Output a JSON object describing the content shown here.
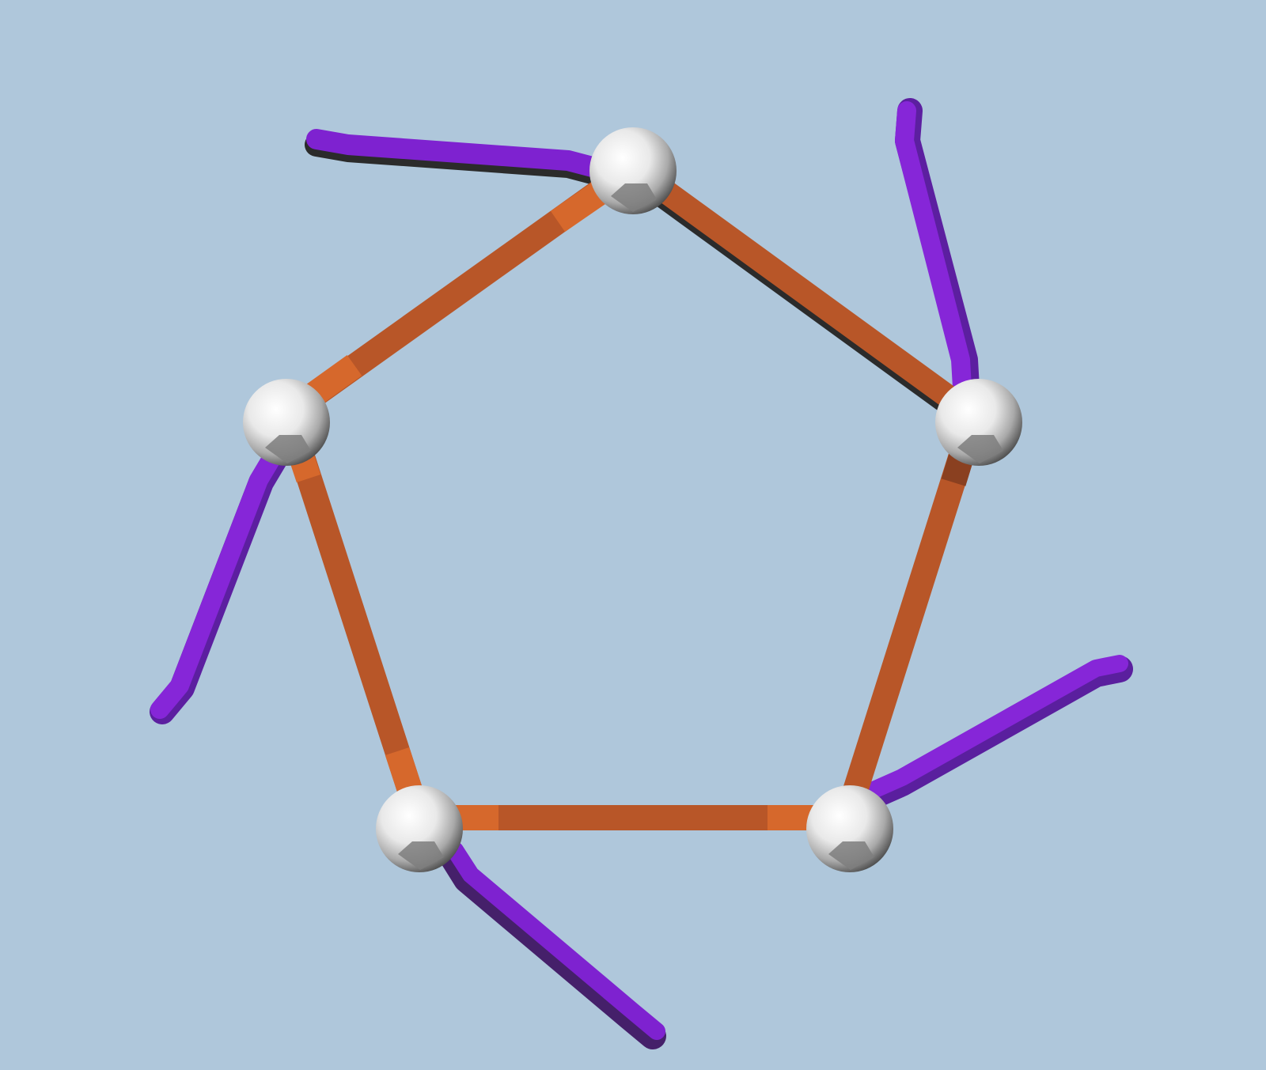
{
  "scene": {
    "background_color": "#afc7db",
    "ring_bond_color": "#b85628",
    "ring_bond_highlight": "#d6682c",
    "ring_bond_shadow": "#2b2b2b",
    "arm_color": "#7e22d0",
    "arm_shadow": "#45206a",
    "node_color": "#ffffff",
    "node_shade": "#7e7e7e",
    "node_count": 5,
    "ring_bond_count": 5,
    "arm_count": 5
  }
}
